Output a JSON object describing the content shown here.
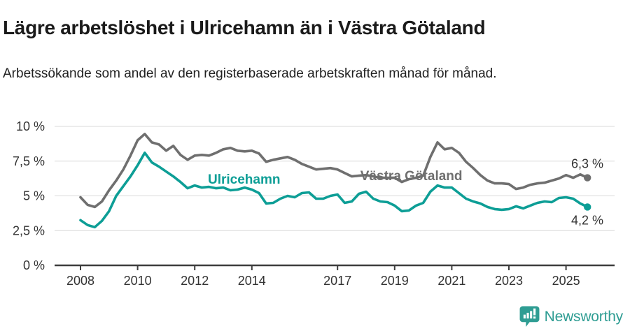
{
  "header": {
    "title": "Lägre arbetslöshet i Ulricehamn än i Västra Götaland",
    "subtitle": "Arbetssökande som andel av den registerbaserade arbetskraften månad för månad."
  },
  "chart_data": {
    "type": "line",
    "title": "Lägre arbetslöshet i Ulricehamn än i Västra Götaland",
    "subtitle": "Arbetssökande som andel av den registerbaserade arbetskraften månad för månad.",
    "ylabel": "",
    "xlabel": "",
    "ylim": [
      0,
      10
    ],
    "grid": "horizontal",
    "legend_position": "inline-labels",
    "y_ticks": [
      {
        "label": "0 %",
        "value": 0
      },
      {
        "label": "2,5 %",
        "value": 2.5
      },
      {
        "label": "5 %",
        "value": 5
      },
      {
        "label": "7,5 %",
        "value": 7.5
      },
      {
        "label": "10 %",
        "value": 10
      }
    ],
    "x_ticks": [
      {
        "label": "2008",
        "year": 2008
      },
      {
        "label": "2010",
        "year": 2010
      },
      {
        "label": "2012",
        "year": 2012
      },
      {
        "label": "2014",
        "year": 2014
      },
      {
        "label": "2017",
        "year": 2017
      },
      {
        "label": "2019",
        "year": 2019
      },
      {
        "label": "2021",
        "year": 2021
      },
      {
        "label": "2023",
        "year": 2023
      },
      {
        "label": "2025",
        "year": 2025
      }
    ],
    "x": [
      2008,
      2008.25,
      2008.5,
      2008.75,
      2009,
      2009.25,
      2009.5,
      2009.75,
      2010,
      2010.25,
      2010.5,
      2010.75,
      2011,
      2011.25,
      2011.5,
      2011.75,
      2012,
      2012.25,
      2012.5,
      2012.75,
      2013,
      2013.25,
      2013.5,
      2013.75,
      2014,
      2014.25,
      2014.5,
      2014.75,
      2015,
      2015.25,
      2015.5,
      2015.75,
      2016,
      2016.25,
      2016.5,
      2016.75,
      2017,
      2017.25,
      2017.5,
      2017.75,
      2018,
      2018.25,
      2018.5,
      2018.75,
      2019,
      2019.25,
      2019.5,
      2019.75,
      2020,
      2020.25,
      2020.5,
      2020.75,
      2021,
      2021.25,
      2021.5,
      2021.75,
      2022,
      2022.25,
      2022.5,
      2022.75,
      2023,
      2023.25,
      2023.5,
      2023.75,
      2024,
      2024.25,
      2024.5,
      2024.75,
      2025,
      2025.25,
      2025.5,
      2025.75
    ],
    "series": [
      {
        "name": "Västra Götaland",
        "color": "#6f6f6f",
        "end_label": "6,3 %",
        "end_value": 6.3,
        "label_at": {
          "x": 2017.8,
          "y": 6.13
        },
        "end_label_dy": -14,
        "values": [
          4.9,
          4.35,
          4.2,
          4.6,
          5.4,
          6.1,
          6.9,
          7.9,
          9.0,
          9.45,
          8.85,
          8.7,
          8.25,
          8.6,
          7.95,
          7.6,
          7.9,
          7.95,
          7.9,
          8.1,
          8.35,
          8.45,
          8.25,
          8.2,
          8.25,
          8.05,
          7.45,
          7.6,
          7.7,
          7.8,
          7.6,
          7.3,
          7.1,
          6.9,
          6.95,
          7.0,
          6.9,
          6.65,
          6.4,
          6.45,
          6.5,
          6.4,
          6.3,
          6.3,
          6.3,
          6.0,
          6.2,
          6.3,
          6.45,
          7.8,
          8.85,
          8.35,
          8.45,
          8.1,
          7.45,
          7.0,
          6.5,
          6.1,
          5.9,
          5.9,
          5.85,
          5.5,
          5.6,
          5.8,
          5.9,
          5.95,
          6.1,
          6.25,
          6.5,
          6.3,
          6.55,
          6.3
        ]
      },
      {
        "name": "Ulricehamn",
        "color": "#0d9e96",
        "end_label": "4,2 %",
        "end_value": 4.2,
        "label_at": {
          "x": 2012.46,
          "y": 5.88
        },
        "end_label_dy": 25,
        "values": [
          3.25,
          2.9,
          2.75,
          3.2,
          3.9,
          5.0,
          5.7,
          6.4,
          7.2,
          8.1,
          7.4,
          7.1,
          6.75,
          6.4,
          6.0,
          5.55,
          5.75,
          5.6,
          5.65,
          5.55,
          5.6,
          5.4,
          5.45,
          5.6,
          5.45,
          5.2,
          4.45,
          4.5,
          4.8,
          5.0,
          4.9,
          5.2,
          5.25,
          4.8,
          4.8,
          5.0,
          5.1,
          4.5,
          4.6,
          5.15,
          5.3,
          4.8,
          4.6,
          4.55,
          4.3,
          3.9,
          3.95,
          4.3,
          4.5,
          5.3,
          5.75,
          5.6,
          5.6,
          5.2,
          4.8,
          4.6,
          4.45,
          4.2,
          4.05,
          4.0,
          4.05,
          4.25,
          4.1,
          4.3,
          4.5,
          4.6,
          4.55,
          4.85,
          4.9,
          4.8,
          4.45,
          4.2
        ]
      }
    ],
    "colors": {
      "gridline": "#d9d9d9",
      "axis": "#3d3d3d",
      "tick_text": "#333333",
      "value_label_text": "#333333"
    }
  },
  "footer": {
    "brand": "Newsworthy",
    "brand_color": "#2f9d93"
  }
}
